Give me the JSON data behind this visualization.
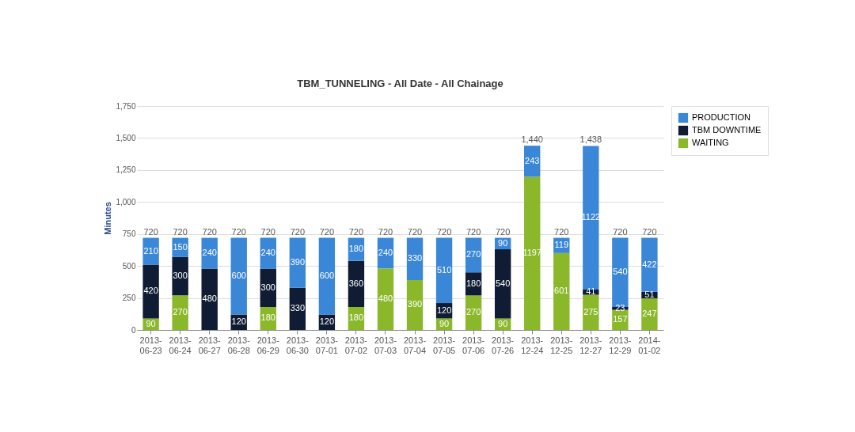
{
  "chart_data": {
    "type": "bar",
    "title": "TBM_TUNNELING - All Date - All Chainage",
    "ylabel": "Minutes",
    "stacked": true,
    "data_labels": true,
    "grid": "y",
    "legend": "right",
    "categories": [
      "2013-06-23",
      "2013-06-24",
      "2013-06-27",
      "2013-06-28",
      "2013-06-29",
      "2013-06-30",
      "2013-07-01",
      "2013-07-02",
      "2013-07-03",
      "2013-07-04",
      "2013-07-05",
      "2013-07-06",
      "2013-07-26",
      "2013-12-24",
      "2013-12-25",
      "2013-12-27",
      "2013-12-29",
      "2014-01-02"
    ],
    "series": [
      {
        "name": "WAITING",
        "color": "#8ab82a",
        "values": [
          90,
          270,
          null,
          null,
          180,
          null,
          null,
          180,
          480,
          390,
          90,
          270,
          90,
          1197,
          601,
          275,
          157,
          247
        ]
      },
      {
        "name": "TBM DOWNTIME",
        "color": "#0f1c33",
        "values": [
          420,
          300,
          480,
          120,
          300,
          330,
          120,
          360,
          null,
          null,
          120,
          180,
          540,
          null,
          null,
          41,
          23,
          51
        ]
      },
      {
        "name": "PRODUCTION",
        "color": "#3a87d8",
        "values": [
          210,
          150,
          240,
          600,
          240,
          390,
          600,
          180,
          240,
          330,
          510,
          270,
          90,
          243,
          119,
          1122,
          540,
          422
        ]
      }
    ],
    "totals": [
      "720",
      "720",
      "720",
      "720",
      "720",
      "720",
      "720",
      "720",
      "720",
      "720",
      "720",
      "720",
      "720",
      "1,440",
      "720",
      "1,438",
      "720",
      "720"
    ],
    "ylim": [
      0,
      1750
    ],
    "yticks": [
      0,
      250,
      500,
      750,
      {
        "value": 1000,
        "label": "1,000"
      },
      {
        "value": 1250,
        "label": "1,250"
      },
      {
        "value": 1500,
        "label": "1,500"
      },
      {
        "value": 1750,
        "label": "1,750"
      }
    ]
  }
}
